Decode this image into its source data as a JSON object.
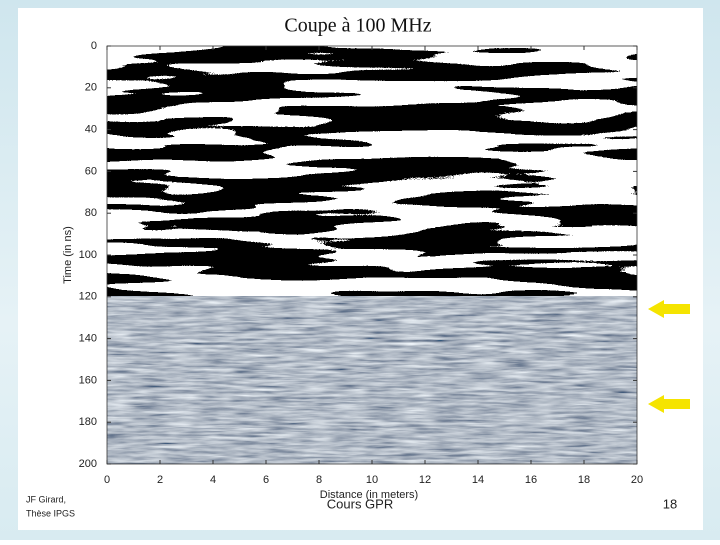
{
  "chart_data": {
    "type": "radargram",
    "title": "Coupe à 100 MHz",
    "x_label": "Distance (in meters)",
    "y_label": "Time (in ns)",
    "xlim": [
      0,
      20
    ],
    "xticks": [
      0,
      2,
      4,
      6,
      8,
      10,
      12,
      14,
      16,
      18,
      20
    ],
    "ylim": [
      0,
      200
    ],
    "yticks": [
      0,
      20,
      40,
      60,
      80,
      100,
      120,
      140,
      160,
      180,
      200
    ],
    "y_inverted": true
  },
  "footer": {
    "author": "JF Girard,",
    "thesis": "Thèse IPGS",
    "course": "Cours GPR",
    "page": "18"
  }
}
